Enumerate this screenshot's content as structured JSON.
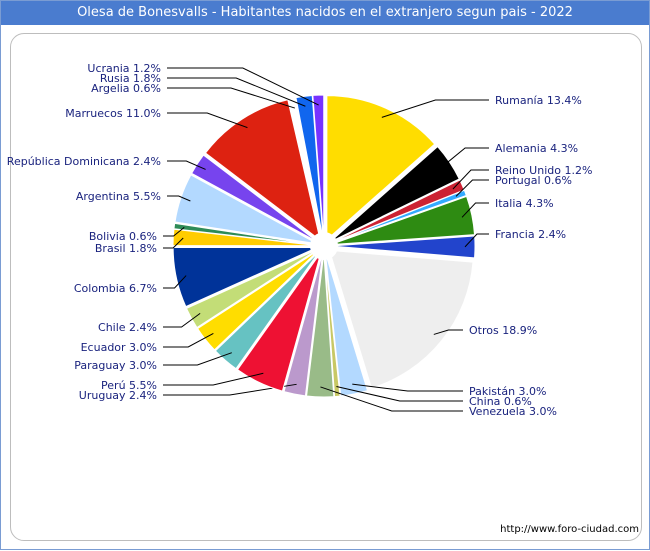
{
  "title": "Olesa de Bonesvalls - Habitantes nacidos en el extranjero segun pais - 2022",
  "footer": "http://www.foro-ciudad.com",
  "chart_data": {
    "type": "pie",
    "title": "Olesa de Bonesvalls - Habitantes nacidos en el extranjero segun pais - 2022",
    "slices": [
      {
        "name": "Rumanía",
        "value": 13.4,
        "label": "Rumanía 13.4%",
        "color": "#ffdd00"
      },
      {
        "name": "Alemania",
        "value": 4.3,
        "label": "Alemania 4.3%",
        "color": "#000000"
      },
      {
        "name": "Reino Unido",
        "value": 1.2,
        "label": "Reino Unido 1.2%",
        "color": "#cc2233"
      },
      {
        "name": "Portugal",
        "value": 0.6,
        "label": "Portugal 0.6%",
        "color": "#33aaff"
      },
      {
        "name": "Italia",
        "value": 4.3,
        "label": "Italia 4.3%",
        "color": "#2e8b12"
      },
      {
        "name": "Francia",
        "value": 2.4,
        "label": "Francia 2.4%",
        "color": "#2244cc"
      },
      {
        "name": "Otros",
        "value": 18.9,
        "label": "Otros 18.9%",
        "color": "#eeeeee"
      },
      {
        "name": "Pakistán",
        "value": 3.0,
        "label": "Pakistán 3.0%",
        "color": "#b3d9ff"
      },
      {
        "name": "China",
        "value": 0.6,
        "label": "China 0.6%",
        "color": "#c8c864"
      },
      {
        "name": "Venezuela",
        "value": 3.0,
        "label": "Venezuela 3.0%",
        "color": "#99bb88"
      },
      {
        "name": "Uruguay",
        "value": 2.4,
        "label": "Uruguay 2.4%",
        "color": "#bb99cc"
      },
      {
        "name": "Perú",
        "value": 5.5,
        "label": "Perú 5.5%",
        "color": "#ee1133"
      },
      {
        "name": "Paraguay",
        "value": 3.0,
        "label": "Paraguay 3.0%",
        "color": "#66c2c2"
      },
      {
        "name": "Ecuador",
        "value": 3.0,
        "label": "Ecuador 3.0%",
        "color": "#ffdd00"
      },
      {
        "name": "Chile",
        "value": 2.4,
        "label": "Chile 2.4%",
        "color": "#c3dd77"
      },
      {
        "name": "Colombia",
        "value": 6.7,
        "label": "Colombia 6.7%",
        "color": "#003399"
      },
      {
        "name": "Brasil",
        "value": 1.8,
        "label": "Brasil 1.8%",
        "color": "#ffcc00"
      },
      {
        "name": "Bolivia",
        "value": 0.6,
        "label": "Bolivia 0.6%",
        "color": "#2e8b57"
      },
      {
        "name": "Argentina",
        "value": 5.5,
        "label": "Argentina 5.5%",
        "color": "#b3d9ff"
      },
      {
        "name": "República Dominicana",
        "value": 2.4,
        "label": "República Dominicana 2.4%",
        "color": "#7744ee"
      },
      {
        "name": "Marruecos",
        "value": 11.0,
        "label": "Marruecos 11.0%",
        "color": "#dd2211"
      },
      {
        "name": "Argelia",
        "value": 0.6,
        "label": "Argelia 0.6%",
        "color": "#ffffff"
      },
      {
        "name": "Rusia",
        "value": 1.8,
        "label": "Rusia 1.8%",
        "color": "#1166ee"
      },
      {
        "name": "Ucrania",
        "value": 1.2,
        "label": "Ucrania 1.2%",
        "color": "#7733ff"
      }
    ]
  }
}
